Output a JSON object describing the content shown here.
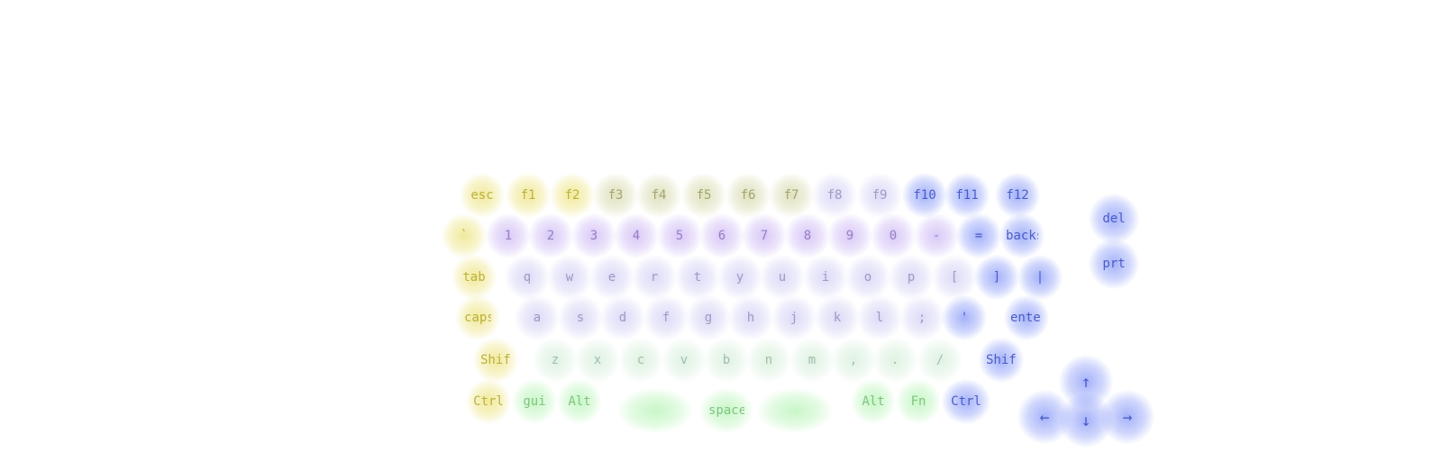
{
  "colors": {
    "yellow": "#e5d84a",
    "olive": "#c7c98a",
    "lilac": "#b99bf0",
    "lavender": "#bfbdf0",
    "mint": "#c6e8cc",
    "green": "#9bf09b",
    "blue": "#5a72f5"
  },
  "rows": {
    "function": [
      {
        "label": "esc",
        "color": "yellow"
      },
      {
        "label": "f1",
        "color": "yellow"
      },
      {
        "label": "f2",
        "color": "yellow"
      },
      {
        "label": "f3",
        "color": "olive"
      },
      {
        "label": "f4",
        "color": "olive"
      },
      {
        "label": "f5",
        "color": "olive"
      },
      {
        "label": "f6",
        "color": "olive"
      },
      {
        "label": "f7",
        "color": "olive"
      },
      {
        "label": "f8",
        "color": "lavender"
      },
      {
        "label": "f9",
        "color": "lavender"
      },
      {
        "label": "f10",
        "color": "blue"
      },
      {
        "label": "f11",
        "color": "blue"
      },
      {
        "label": "f12",
        "color": "blue"
      }
    ],
    "number": [
      {
        "label": "`",
        "color": "yellow"
      },
      {
        "label": "1",
        "color": "lilac"
      },
      {
        "label": "2",
        "color": "lilac"
      },
      {
        "label": "3",
        "color": "lilac"
      },
      {
        "label": "4",
        "color": "lilac"
      },
      {
        "label": "5",
        "color": "lilac"
      },
      {
        "label": "6",
        "color": "lilac"
      },
      {
        "label": "7",
        "color": "lilac"
      },
      {
        "label": "8",
        "color": "lilac"
      },
      {
        "label": "9",
        "color": "lilac"
      },
      {
        "label": "0",
        "color": "lilac"
      },
      {
        "label": "-",
        "color": "lilac"
      },
      {
        "label": "=",
        "color": "blue"
      },
      {
        "label": "backspace",
        "color": "blue"
      }
    ],
    "top": [
      {
        "label": "tab",
        "color": "yellow"
      },
      {
        "label": "q",
        "color": "lavender"
      },
      {
        "label": "w",
        "color": "lavender"
      },
      {
        "label": "e",
        "color": "lavender"
      },
      {
        "label": "r",
        "color": "lavender"
      },
      {
        "label": "t",
        "color": "lavender"
      },
      {
        "label": "y",
        "color": "lavender"
      },
      {
        "label": "u",
        "color": "lavender"
      },
      {
        "label": "i",
        "color": "lavender"
      },
      {
        "label": "o",
        "color": "lavender"
      },
      {
        "label": "p",
        "color": "lavender"
      },
      {
        "label": "[",
        "color": "lavender"
      },
      {
        "label": "]",
        "color": "blue"
      },
      {
        "label": "|",
        "color": "blue"
      }
    ],
    "home": [
      {
        "label": "caps lock",
        "color": "yellow"
      },
      {
        "label": "a",
        "color": "lavender"
      },
      {
        "label": "s",
        "color": "lavender"
      },
      {
        "label": "d",
        "color": "lavender"
      },
      {
        "label": "f",
        "color": "lavender"
      },
      {
        "label": "g",
        "color": "lavender"
      },
      {
        "label": "h",
        "color": "lavender"
      },
      {
        "label": "j",
        "color": "lavender"
      },
      {
        "label": "k",
        "color": "lavender"
      },
      {
        "label": "l",
        "color": "lavender"
      },
      {
        "label": ";",
        "color": "lavender"
      },
      {
        "label": "'",
        "color": "blue"
      },
      {
        "label": "enter",
        "color": "blue"
      }
    ],
    "bottom": [
      {
        "label": "Shift",
        "color": "yellow"
      },
      {
        "label": "z",
        "color": "mint"
      },
      {
        "label": "x",
        "color": "mint"
      },
      {
        "label": "c",
        "color": "mint"
      },
      {
        "label": "v",
        "color": "mint"
      },
      {
        "label": "b",
        "color": "mint"
      },
      {
        "label": "n",
        "color": "mint"
      },
      {
        "label": "m",
        "color": "mint"
      },
      {
        "label": ",",
        "color": "mint"
      },
      {
        "label": ".",
        "color": "mint"
      },
      {
        "label": "/",
        "color": "mint"
      },
      {
        "label": "Shift",
        "color": "blue"
      }
    ],
    "modifier": [
      {
        "label": "Ctrl",
        "color": "yellow"
      },
      {
        "label": "gui",
        "color": "green"
      },
      {
        "label": "Alt",
        "color": "green"
      },
      {
        "label": "",
        "color": "green"
      },
      {
        "label": "space",
        "color": "green"
      },
      {
        "label": "",
        "color": "green"
      },
      {
        "label": "Alt",
        "color": "green"
      },
      {
        "label": "Fn",
        "color": "green"
      },
      {
        "label": "Ctrl",
        "color": "blue"
      }
    ]
  },
  "side_keys": [
    {
      "label": "del",
      "color": "blue"
    },
    {
      "label": "prt",
      "color": "blue"
    }
  ],
  "arrow_keys": [
    {
      "label": "↑",
      "color": "blue",
      "icon": "arrow-up-icon"
    },
    {
      "label": "←",
      "color": "blue",
      "icon": "arrow-left-icon"
    },
    {
      "label": "↓",
      "color": "blue",
      "icon": "arrow-down-icon"
    },
    {
      "label": "→",
      "color": "blue",
      "icon": "arrow-right-icon"
    }
  ]
}
